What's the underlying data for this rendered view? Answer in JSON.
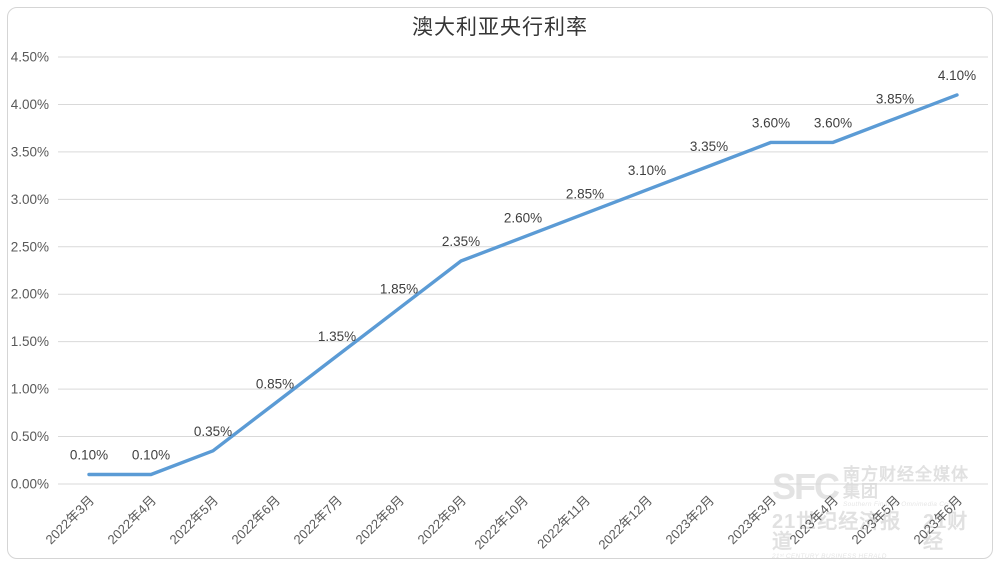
{
  "page": {
    "background": "#ffffff",
    "frame_border_color": "#d5d5d5"
  },
  "chart_data": {
    "type": "line",
    "title": "澳大利亚央行利率",
    "categories": [
      "2022年3月",
      "2022年4月",
      "2022年5月",
      "2022年6月",
      "2022年7月",
      "2022年8月",
      "2022年9月",
      "2022年10月",
      "2022年11月",
      "2022年12月",
      "2023年2月",
      "2023年3月",
      "2023年4月",
      "2023年5月",
      "2023年6月"
    ],
    "values": [
      0.1,
      0.1,
      0.35,
      0.85,
      1.35,
      1.85,
      2.35,
      2.6,
      2.85,
      3.1,
      3.35,
      3.6,
      3.6,
      3.85,
      4.1
    ],
    "point_labels": [
      "0.10%",
      "0.10%",
      "0.35%",
      "0.85%",
      "1.35%",
      "1.85%",
      "2.35%",
      "2.60%",
      "2.85%",
      "3.10%",
      "3.35%",
      "3.60%",
      "3.60%",
      "3.85%",
      "4.10%"
    ],
    "y_ticks": [
      "0.00%",
      "0.50%",
      "1.00%",
      "1.50%",
      "2.00%",
      "2.50%",
      "3.00%",
      "3.50%",
      "4.00%",
      "4.50%"
    ],
    "ylim": [
      0,
      4.5
    ],
    "xlabel": "",
    "ylabel": "",
    "grid": "horizontal",
    "legend": "none",
    "line_color": "#5B9BD5",
    "grid_color": "#d9d9d9",
    "tick_color": "#595959",
    "label_color": "#3f3f3f"
  },
  "watermark": {
    "logo": "SFC",
    "corp_cn": "南方财经全媒体集团",
    "corp_en": "Southern Finance Omnimedia Corp.",
    "herald_cn": "21世纪经济报道",
    "herald_en": "21ˢᵗ CENTURY BUSINESS HERALD",
    "brand_cn": "21财经"
  }
}
